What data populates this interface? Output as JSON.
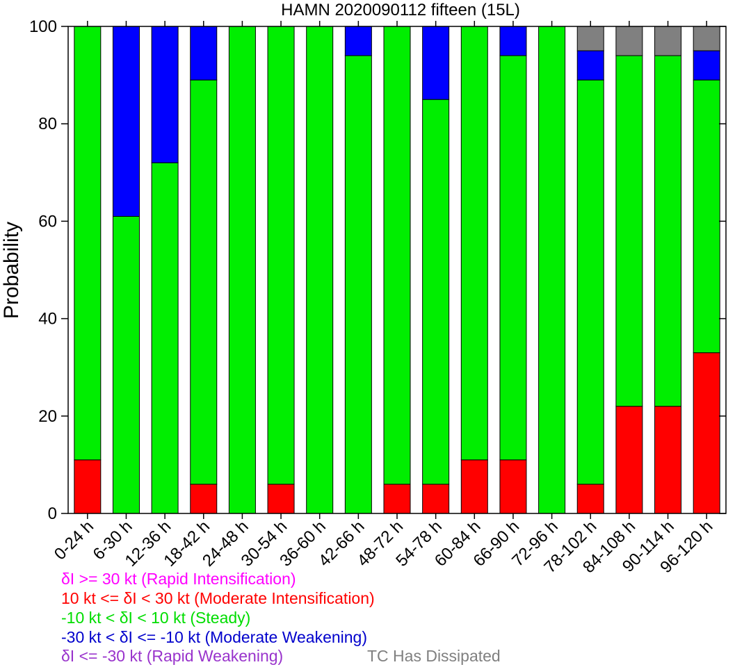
{
  "chart_data": {
    "type": "bar",
    "stacked": true,
    "title": "HAMN 2020090112 fifteen (15L)",
    "xlabel": "",
    "ylabel": "Probability",
    "ylim": [
      0,
      100
    ],
    "yticks": [
      "0",
      "20",
      "40",
      "60",
      "80",
      "100"
    ],
    "categories": [
      "0-24 h",
      "6-30 h",
      "12-36 h",
      "18-42 h",
      "24-48 h",
      "30-54 h",
      "36-60 h",
      "42-66 h",
      "48-72 h",
      "54-78 h",
      "60-84 h",
      "66-90 h",
      "72-96 h",
      "78-102 h",
      "84-108 h",
      "90-114 h",
      "96-120 h"
    ],
    "series": [
      {
        "key": "rapid_intensification",
        "color": "#ff00ff",
        "values": [
          0,
          0,
          0,
          0,
          0,
          0,
          0,
          0,
          0,
          0,
          0,
          0,
          0,
          0,
          0,
          0,
          0
        ]
      },
      {
        "key": "moderate_intensification",
        "color": "#ff0000",
        "values": [
          11,
          0,
          0,
          6,
          0,
          6,
          0,
          0,
          6,
          6,
          11,
          11,
          0,
          6,
          22,
          22,
          33
        ]
      },
      {
        "key": "steady",
        "color": "#00ee00",
        "values": [
          89,
          61,
          72,
          83,
          100,
          94,
          100,
          94,
          94,
          79,
          89,
          83,
          100,
          83,
          72,
          72,
          56
        ]
      },
      {
        "key": "moderate_weakening",
        "color": "#0000ff",
        "values": [
          0,
          39,
          28,
          11,
          0,
          0,
          0,
          6,
          0,
          15,
          0,
          6,
          0,
          6,
          0,
          0,
          6
        ]
      },
      {
        "key": "rapid_weakening",
        "color": "#9933ff",
        "values": [
          0,
          0,
          0,
          0,
          0,
          0,
          0,
          0,
          0,
          0,
          0,
          0,
          0,
          0,
          0,
          0,
          0
        ]
      },
      {
        "key": "dissipated",
        "color": "#808080",
        "values": [
          0,
          0,
          0,
          0,
          0,
          0,
          0,
          0,
          0,
          0,
          0,
          0,
          0,
          5,
          6,
          6,
          5
        ]
      }
    ],
    "legend": [
      {
        "text": "δI >= 30 kt (Rapid Intensification)",
        "color": "#ff00ff"
      },
      {
        "text": "10 kt <= δI < 30 kt (Moderate Intensification)",
        "color": "#ff0000"
      },
      {
        "text": "-10 kt < δI < 10 kt (Steady)",
        "color": "#00dd00"
      },
      {
        "text": "-30 kt < δI <= -10 kt (Moderate Weakening)",
        "color": "#0000cc"
      },
      {
        "text": "δI <= -30 kt (Rapid Weakening)",
        "color": "#9933cc"
      },
      {
        "text": "TC Has Dissipated",
        "color": "#808080"
      }
    ]
  }
}
